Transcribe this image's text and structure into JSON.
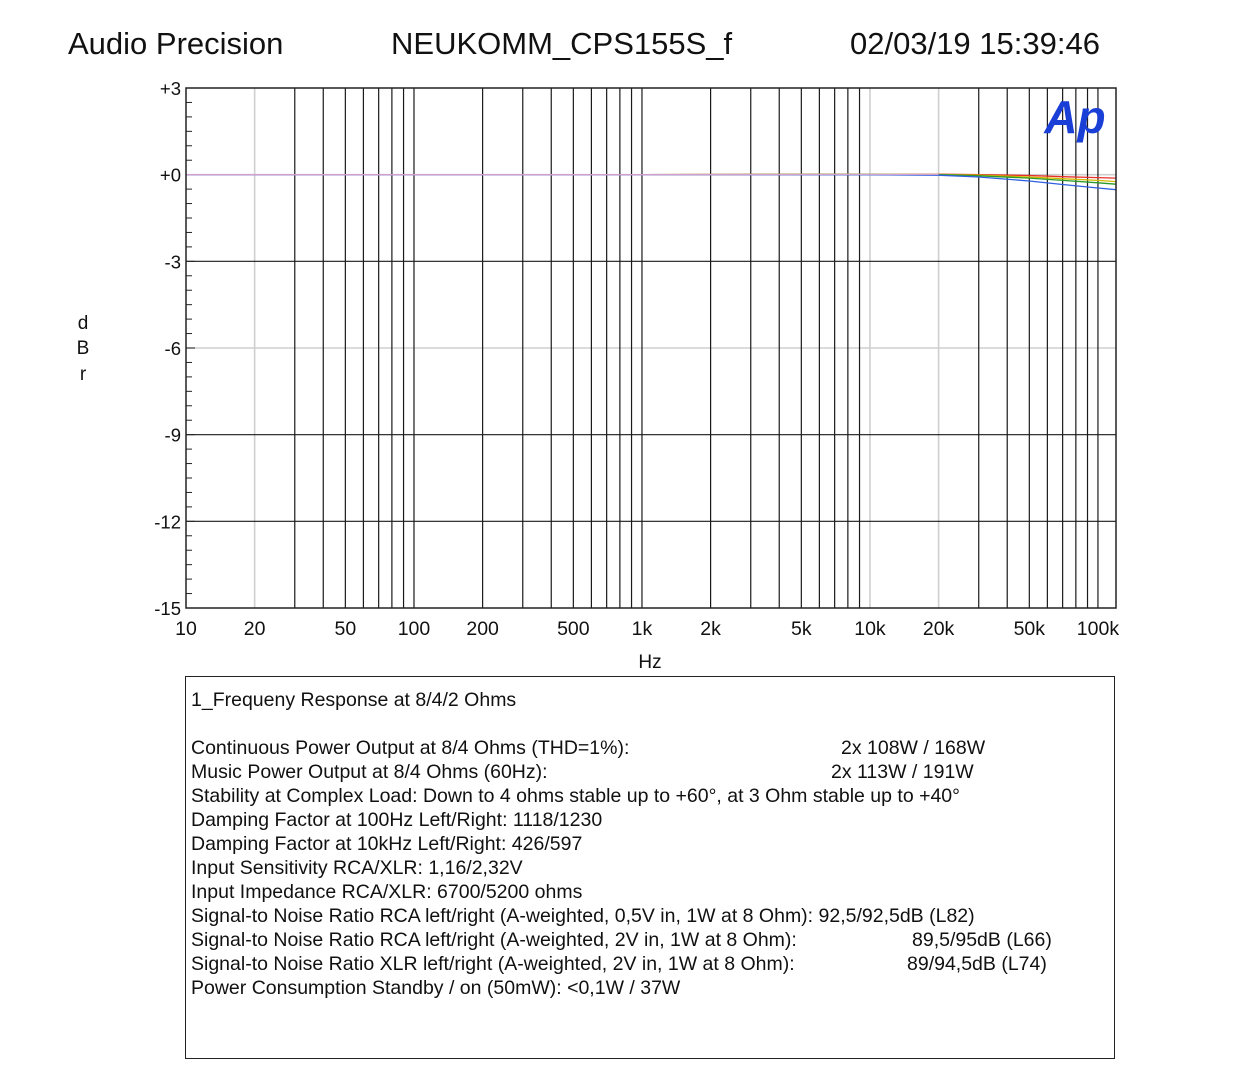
{
  "header": {
    "left": "Audio Precision",
    "center": "NEUKOMM_CPS155S_f",
    "right": "02/03/19 15:39:46"
  },
  "logo": {
    "text": "Ap",
    "color": "#1a3fd6"
  },
  "chart_data": {
    "type": "line",
    "xlabel": "Hz",
    "ylabel": "dBr",
    "xscale": "log",
    "xlim": [
      10,
      120000
    ],
    "ylim": [
      -15,
      3
    ],
    "xticks": [
      {
        "value": 10,
        "label": "10"
      },
      {
        "value": 20,
        "label": "20"
      },
      {
        "value": 50,
        "label": "50"
      },
      {
        "value": 100,
        "label": "100"
      },
      {
        "value": 200,
        "label": "200"
      },
      {
        "value": 500,
        "label": "500"
      },
      {
        "value": 1000,
        "label": "1k"
      },
      {
        "value": 2000,
        "label": "2k"
      },
      {
        "value": 5000,
        "label": "5k"
      },
      {
        "value": 10000,
        "label": "10k"
      },
      {
        "value": 20000,
        "label": "20k"
      },
      {
        "value": 50000,
        "label": "50k"
      },
      {
        "value": 100000,
        "label": "100k"
      }
    ],
    "yticks": [
      {
        "value": 3,
        "label": "+3"
      },
      {
        "value": 0,
        "label": "+0"
      },
      {
        "value": -3,
        "label": "-3"
      },
      {
        "value": -6,
        "label": "-6"
      },
      {
        "value": -9,
        "label": "-9"
      },
      {
        "value": -12,
        "label": "-12"
      },
      {
        "value": -15,
        "label": "-15"
      }
    ],
    "grid": true,
    "series": [
      {
        "color": "#e8302a",
        "x": [
          10,
          100,
          1000,
          10000,
          20000,
          30000,
          50000,
          70000,
          100000,
          120000
        ],
        "y": [
          0,
          0,
          0,
          0.02,
          0.02,
          0.0,
          -0.03,
          -0.07,
          -0.1,
          -0.12
        ]
      },
      {
        "color": "#d4b800",
        "x": [
          10,
          100,
          1000,
          10000,
          20000,
          30000,
          50000,
          70000,
          100000,
          120000
        ],
        "y": [
          0,
          0,
          0,
          0.02,
          0.01,
          -0.02,
          -0.08,
          -0.14,
          -0.2,
          -0.24
        ]
      },
      {
        "color": "#2a9a2a",
        "x": [
          10,
          100,
          1000,
          10000,
          20000,
          30000,
          50000,
          70000,
          100000,
          120000
        ],
        "y": [
          0,
          0,
          0,
          0.01,
          0.0,
          -0.04,
          -0.12,
          -0.2,
          -0.28,
          -0.33
        ]
      },
      {
        "color": "#3060e0",
        "x": [
          10,
          100,
          1000,
          10000,
          20000,
          30000,
          50000,
          70000,
          100000,
          120000
        ],
        "y": [
          0,
          0,
          0,
          0.0,
          -0.02,
          -0.08,
          -0.22,
          -0.34,
          -0.46,
          -0.52
        ]
      },
      {
        "color": "#d0a0d0",
        "x": [
          10,
          100,
          1000,
          10000,
          20000
        ],
        "y": [
          0,
          0,
          0,
          0.01,
          0.01
        ]
      }
    ]
  },
  "notes": {
    "title": "1_Frequeny Response at 8/4/2 Ohms",
    "lines": [
      {
        "label": "Continuous Power Output at 8/4 Ohms (THD=1%):",
        "value": "2x 108W / 168W"
      },
      {
        "label": "Music Power Output at 8/4 Ohms (60Hz):",
        "value": "2x 113W / 191W"
      },
      {
        "label": "Stability at Complex Load: Down to 4 ohms stable up to +60°, at 3 Ohm stable up to +40°",
        "value": ""
      },
      {
        "label": "Damping Factor at 100Hz Left/Right: 1118/1230",
        "value": ""
      },
      {
        "label": "Damping Factor at 10kHz Left/Right: 426/597",
        "value": ""
      },
      {
        "label": "Input Sensitivity RCA/XLR: 1,16/2,32V",
        "value": ""
      },
      {
        "label": "Input Impedance RCA/XLR: 6700/5200 ohms",
        "value": ""
      },
      {
        "label": "Signal-to Noise Ratio RCA left/right (A-weighted, 0,5V in,  1W at 8 Ohm): 92,5/92,5dB (L82)",
        "value": ""
      },
      {
        "label": "Signal-to Noise Ratio RCA left/right (A-weighted, 2V in,  1W at 8 Ohm):",
        "value": "89,5/95dB (L66)"
      },
      {
        "label": "Signal-to Noise Ratio XLR left/right (A-weighted, 2V in,  1W at 8 Ohm):",
        "value": "89/94,5dB (L74)"
      },
      {
        "label": "Power Consumption Standby / on (50mW): <0,1W / 37W",
        "value": ""
      }
    ]
  }
}
